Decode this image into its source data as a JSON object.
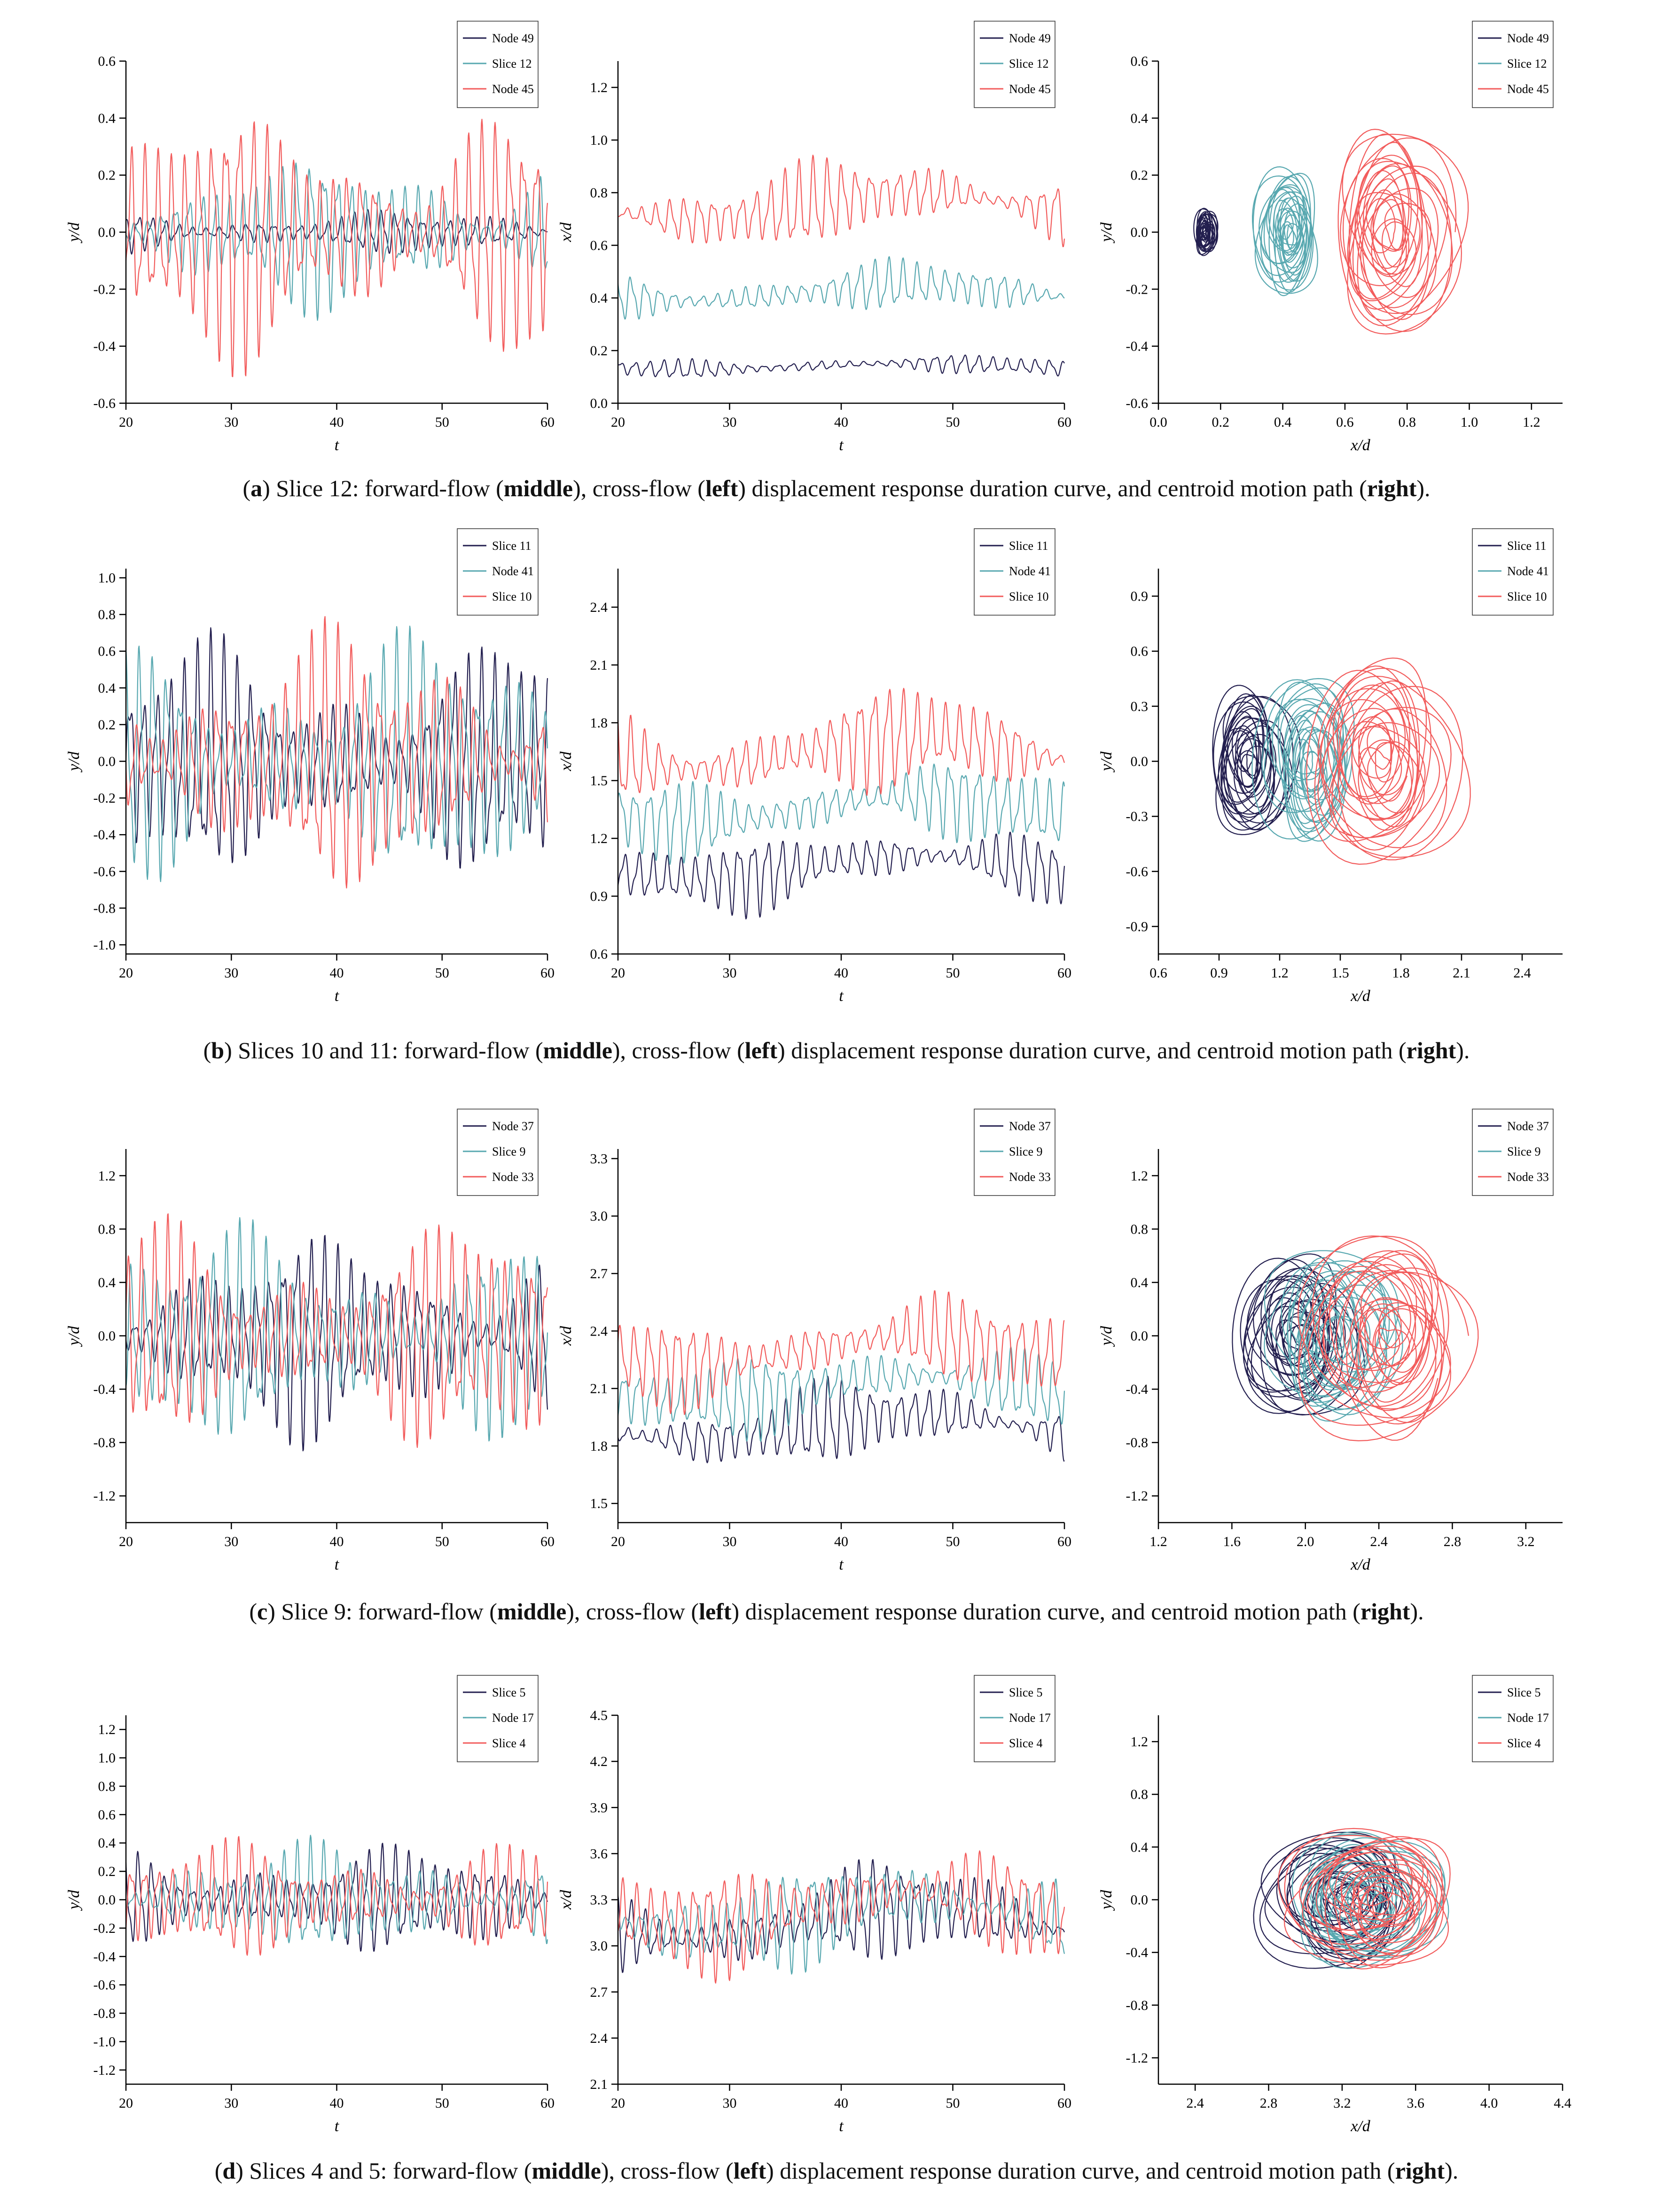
{
  "colors": {
    "series1": "#231f4f",
    "series2": "#58a8b0",
    "series3": "#f25c5c",
    "axis": "#000000"
  },
  "captions": [
    {
      "label": "a",
      "text1": " Slice 12: forward-flow (",
      "middle": "middle",
      "text2": "), cross-flow (",
      "left": "left",
      "text3": ") displacement response duration curve, and centroid motion path (",
      "right": "right",
      "text4": ")."
    },
    {
      "label": "b",
      "text1": " Slices 10 and 11: forward-flow (",
      "middle": "middle",
      "text2": "), cross-flow (",
      "left": "left",
      "text3": ") displacement response duration curve, and centroid motion path (",
      "right": "right",
      "text4": ")."
    },
    {
      "label": "c",
      "text1": " Slice 9: forward-flow (",
      "middle": "middle",
      "text2": "), cross-flow (",
      "left": "left",
      "text3": ") displacement response duration curve, and centroid motion path (",
      "right": "right",
      "text4": ")."
    },
    {
      "label": "d",
      "text1": " Slices 4 and 5: forward-flow (",
      "middle": "middle",
      "text2": "), cross-flow (",
      "left": "left",
      "text3": ") displacement response duration curve, and centroid motion path (",
      "right": "right",
      "text4": ")."
    }
  ],
  "chart_data": [
    {
      "id": "a-left",
      "type": "line",
      "xlabel": "t",
      "ylabel": "y/d",
      "xlim": [
        20,
        60
      ],
      "ylim": [
        -0.6,
        0.6
      ],
      "xticks": [
        20,
        30,
        40,
        50,
        60
      ],
      "yticks": [
        -0.6,
        -0.4,
        -0.2,
        0.0,
        0.2,
        0.4,
        0.6
      ],
      "tick_decimals": 1,
      "legend": "top-right",
      "series": [
        {
          "name": "Node 49",
          "center": 0.0,
          "amp": 0.07
        },
        {
          "name": "Slice  12",
          "center": 0.0,
          "amp": 0.25
        },
        {
          "name": "Node 45",
          "center": 0.0,
          "amp": 0.42
        }
      ]
    },
    {
      "id": "a-mid",
      "type": "line",
      "xlabel": "t",
      "ylabel": "x/d",
      "xlim": [
        20,
        60
      ],
      "ylim": [
        0.0,
        1.3
      ],
      "xticks": [
        20,
        30,
        40,
        50,
        60
      ],
      "yticks": [
        0.0,
        0.2,
        0.4,
        0.6,
        0.8,
        1.0,
        1.2
      ],
      "tick_decimals": 1,
      "legend": "top-right",
      "series": [
        {
          "name": "Node 49",
          "center": 0.14,
          "amp": 0.035
        },
        {
          "name": "Slice  12",
          "center": 0.42,
          "amp": 0.09
        },
        {
          "name": "Node 45",
          "center": 0.75,
          "amp": 0.15
        }
      ]
    },
    {
      "id": "a-right",
      "type": "scatter",
      "xlabel": "x/d",
      "ylabel": "y/d",
      "xlim": [
        0.0,
        1.3
      ],
      "ylim": [
        -0.6,
        0.6
      ],
      "xticks": [
        0.0,
        0.2,
        0.4,
        0.6,
        0.8,
        1.0,
        1.2
      ],
      "yticks": [
        -0.6,
        -0.4,
        -0.2,
        0.0,
        0.2,
        0.4,
        0.6
      ],
      "tick_decimals": 1,
      "legend": "top-right",
      "series": [
        {
          "name": "Node 49",
          "cx": 0.15,
          "cy": 0.0,
          "rx": 0.04,
          "ry": 0.08
        },
        {
          "name": "Slice  12",
          "cx": 0.42,
          "cy": 0.0,
          "rx": 0.11,
          "ry": 0.22
        },
        {
          "name": "Node 45",
          "cx": 0.75,
          "cy": 0.0,
          "rx": 0.22,
          "ry": 0.36
        }
      ]
    },
    {
      "id": "b-left",
      "type": "line",
      "xlabel": "t",
      "ylabel": "y/d",
      "xlim": [
        20,
        60
      ],
      "ylim": [
        -1.05,
        1.05
      ],
      "xticks": [
        20,
        30,
        40,
        50,
        60
      ],
      "yticks": [
        -1.0,
        -0.8,
        -0.6,
        -0.4,
        -0.2,
        0.0,
        0.2,
        0.4,
        0.6,
        0.8,
        1.0
      ],
      "tick_decimals": 1,
      "legend": "top-right",
      "series": [
        {
          "name": "Slice 11",
          "center": 0.0,
          "amp": 0.6
        },
        {
          "name": "Node 41",
          "center": 0.0,
          "amp": 0.62
        },
        {
          "name": "Slice 10",
          "center": 0.0,
          "amp": 0.66
        }
      ]
    },
    {
      "id": "b-mid",
      "type": "line",
      "xlabel": "t",
      "ylabel": "x/d",
      "xlim": [
        20,
        60
      ],
      "ylim": [
        0.6,
        2.6
      ],
      "xticks": [
        20,
        30,
        40,
        50,
        60
      ],
      "yticks": [
        0.6,
        0.9,
        1.2,
        1.5,
        1.8,
        2.1,
        2.4
      ],
      "tick_decimals": 1,
      "legend": "top-right",
      "series": [
        {
          "name": "Slice 11",
          "center": 1.05,
          "amp": 0.18
        },
        {
          "name": "Node 41",
          "center": 1.35,
          "amp": 0.2
        },
        {
          "name": "Slice 10",
          "center": 1.65,
          "amp": 0.25
        }
      ]
    },
    {
      "id": "b-right",
      "type": "scatter",
      "xlabel": "x/d",
      "ylabel": "y/d",
      "xlim": [
        0.6,
        2.6
      ],
      "ylim": [
        -1.05,
        1.05
      ],
      "xticks": [
        0.6,
        0.9,
        1.2,
        1.5,
        1.8,
        2.1,
        2.4
      ],
      "yticks": [
        -0.9,
        -0.6,
        -0.3,
        0.0,
        0.3,
        0.6,
        0.9
      ],
      "tick_decimals": 1,
      "legend": "top-right",
      "series": [
        {
          "name": "Slice 11",
          "cx": 1.05,
          "cy": 0.0,
          "rx": 0.22,
          "ry": 0.4
        },
        {
          "name": "Node 41",
          "cx": 1.35,
          "cy": 0.0,
          "rx": 0.25,
          "ry": 0.45
        },
        {
          "name": "Slice 10",
          "cx": 1.7,
          "cy": 0.0,
          "rx": 0.4,
          "ry": 0.55
        }
      ]
    },
    {
      "id": "c-left",
      "type": "line",
      "xlabel": "t",
      "ylabel": "y/d",
      "xlim": [
        20,
        60
      ],
      "ylim": [
        -1.4,
        1.4
      ],
      "xticks": [
        20,
        30,
        40,
        50,
        60
      ],
      "yticks": [
        -1.2,
        -0.8,
        -0.4,
        0.0,
        0.4,
        0.8,
        1.2
      ],
      "tick_decimals": 1,
      "legend": "top-right",
      "series": [
        {
          "name": "Node 37",
          "center": 0.0,
          "amp": 0.72
        },
        {
          "name": "Slice  9",
          "center": 0.0,
          "amp": 0.74
        },
        {
          "name": "Node 33",
          "center": 0.0,
          "amp": 0.78
        }
      ]
    },
    {
      "id": "c-mid",
      "type": "line",
      "xlabel": "t",
      "ylabel": "x/d",
      "xlim": [
        20,
        60
      ],
      "ylim": [
        1.4,
        3.35
      ],
      "xticks": [
        20,
        30,
        40,
        50,
        60
      ],
      "yticks": [
        1.5,
        1.8,
        2.1,
        2.4,
        2.7,
        3.0,
        3.3
      ],
      "tick_decimals": 1,
      "legend": "top-right",
      "series": [
        {
          "name": "Node 37",
          "center": 1.9,
          "amp": 0.2
        },
        {
          "name": "Slice  9",
          "center": 2.1,
          "amp": 0.2
        },
        {
          "name": "Node 33",
          "center": 2.3,
          "amp": 0.22
        }
      ]
    },
    {
      "id": "c-right",
      "type": "scatter",
      "xlabel": "x/d",
      "ylabel": "y/d",
      "xlim": [
        1.2,
        3.4
      ],
      "ylim": [
        -1.4,
        1.4
      ],
      "xticks": [
        1.2,
        1.6,
        2.0,
        2.4,
        2.8,
        3.2
      ],
      "yticks": [
        -1.2,
        -0.8,
        -0.4,
        0.0,
        0.4,
        0.8,
        1.2
      ],
      "tick_decimals": 1,
      "legend": "top-right",
      "series": [
        {
          "name": "Node 37",
          "cx": 1.95,
          "cy": 0.0,
          "rx": 0.35,
          "ry": 0.6
        },
        {
          "name": "Slice  9",
          "cx": 2.15,
          "cy": 0.0,
          "rx": 0.38,
          "ry": 0.62
        },
        {
          "name": "Node 33",
          "cx": 2.45,
          "cy": 0.0,
          "rx": 0.5,
          "ry": 0.75
        }
      ]
    },
    {
      "id": "d-left",
      "type": "line",
      "xlabel": "t",
      "ylabel": "y/d",
      "xlim": [
        20,
        60
      ],
      "ylim": [
        -1.3,
        1.3
      ],
      "xticks": [
        20,
        30,
        40,
        50,
        60
      ],
      "yticks": [
        -1.2,
        -1.0,
        -0.8,
        -0.6,
        -0.4,
        -0.2,
        0.0,
        0.2,
        0.4,
        0.6,
        0.8,
        1.0,
        1.2
      ],
      "tick_decimals": 1,
      "legend": "top-right",
      "series": [
        {
          "name": "Slice  5",
          "center": 0.0,
          "amp": 0.35
        },
        {
          "name": "Node 17",
          "center": 0.0,
          "amp": 0.36
        },
        {
          "name": "Slice  4",
          "center": 0.0,
          "amp": 0.38
        }
      ]
    },
    {
      "id": "d-mid",
      "type": "line",
      "xlabel": "t",
      "ylabel": "x/d",
      "xlim": [
        20,
        60
      ],
      "ylim": [
        2.1,
        4.5
      ],
      "xticks": [
        20,
        30,
        40,
        50,
        60
      ],
      "yticks": [
        2.1,
        2.4,
        2.7,
        3.0,
        3.3,
        3.6,
        3.9,
        4.2,
        4.5
      ],
      "tick_decimals": 1,
      "legend": "top-right",
      "series": [
        {
          "name": "Slice  5",
          "center": 3.15,
          "amp": 0.3
        },
        {
          "name": "Node 17",
          "center": 3.2,
          "amp": 0.3
        },
        {
          "name": "Slice  4",
          "center": 3.25,
          "amp": 0.32
        }
      ]
    },
    {
      "id": "d-right",
      "type": "scatter",
      "xlabel": "x/d",
      "ylabel": "y/d",
      "xlim": [
        2.2,
        4.4
      ],
      "ylim": [
        -1.4,
        1.4
      ],
      "xticks": [
        2.4,
        2.8,
        3.2,
        3.6,
        4.0,
        4.4
      ],
      "yticks": [
        -1.2,
        -0.8,
        -0.4,
        0.0,
        0.4,
        0.8,
        1.2
      ],
      "tick_decimals": 1,
      "legend": "top-right",
      "series": [
        {
          "name": "Slice  5",
          "cx": 3.2,
          "cy": 0.0,
          "rx": 0.45,
          "ry": 0.5
        },
        {
          "name": "Node 17",
          "cx": 3.3,
          "cy": 0.0,
          "rx": 0.45,
          "ry": 0.5
        },
        {
          "name": "Slice  4",
          "cx": 3.4,
          "cy": 0.0,
          "rx": 0.5,
          "ry": 0.52
        }
      ]
    }
  ]
}
